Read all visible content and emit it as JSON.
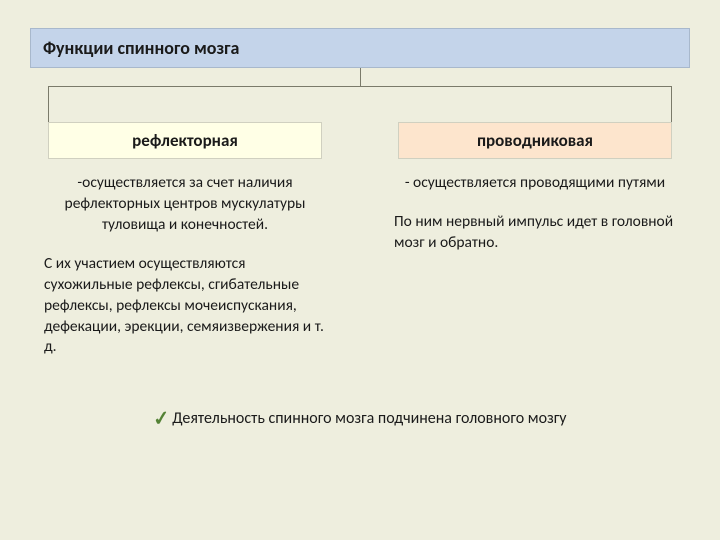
{
  "title": "Функции спинного мозга",
  "left": {
    "heading": "рефлекторная",
    "bullet": "-осуществляется за счет наличия рефлекторных центров мускулатуры туловища и конечностей.",
    "para": "С их участием осуществляются сухожильные рефлексы, сгибательные рефлексы, рефлексы мочеиспускания, дефекации, эрекции, семяизвержения и т. д."
  },
  "right": {
    "heading": "проводниковая",
    "bullet": "- осуществляется проводящими путями",
    "para": "По ним нервный импульс идет в головной мозг и обратно."
  },
  "footnote": "Деятельность спинного мозга подчинена головного мозгу",
  "colors": {
    "page_bg": "#eeeede",
    "title_bg": "#c4d4ea",
    "chip_yellow": "#ffffe6",
    "chip_orange": "#fde5cd",
    "check": "#548235",
    "tree_line": "#7a7a6a"
  }
}
